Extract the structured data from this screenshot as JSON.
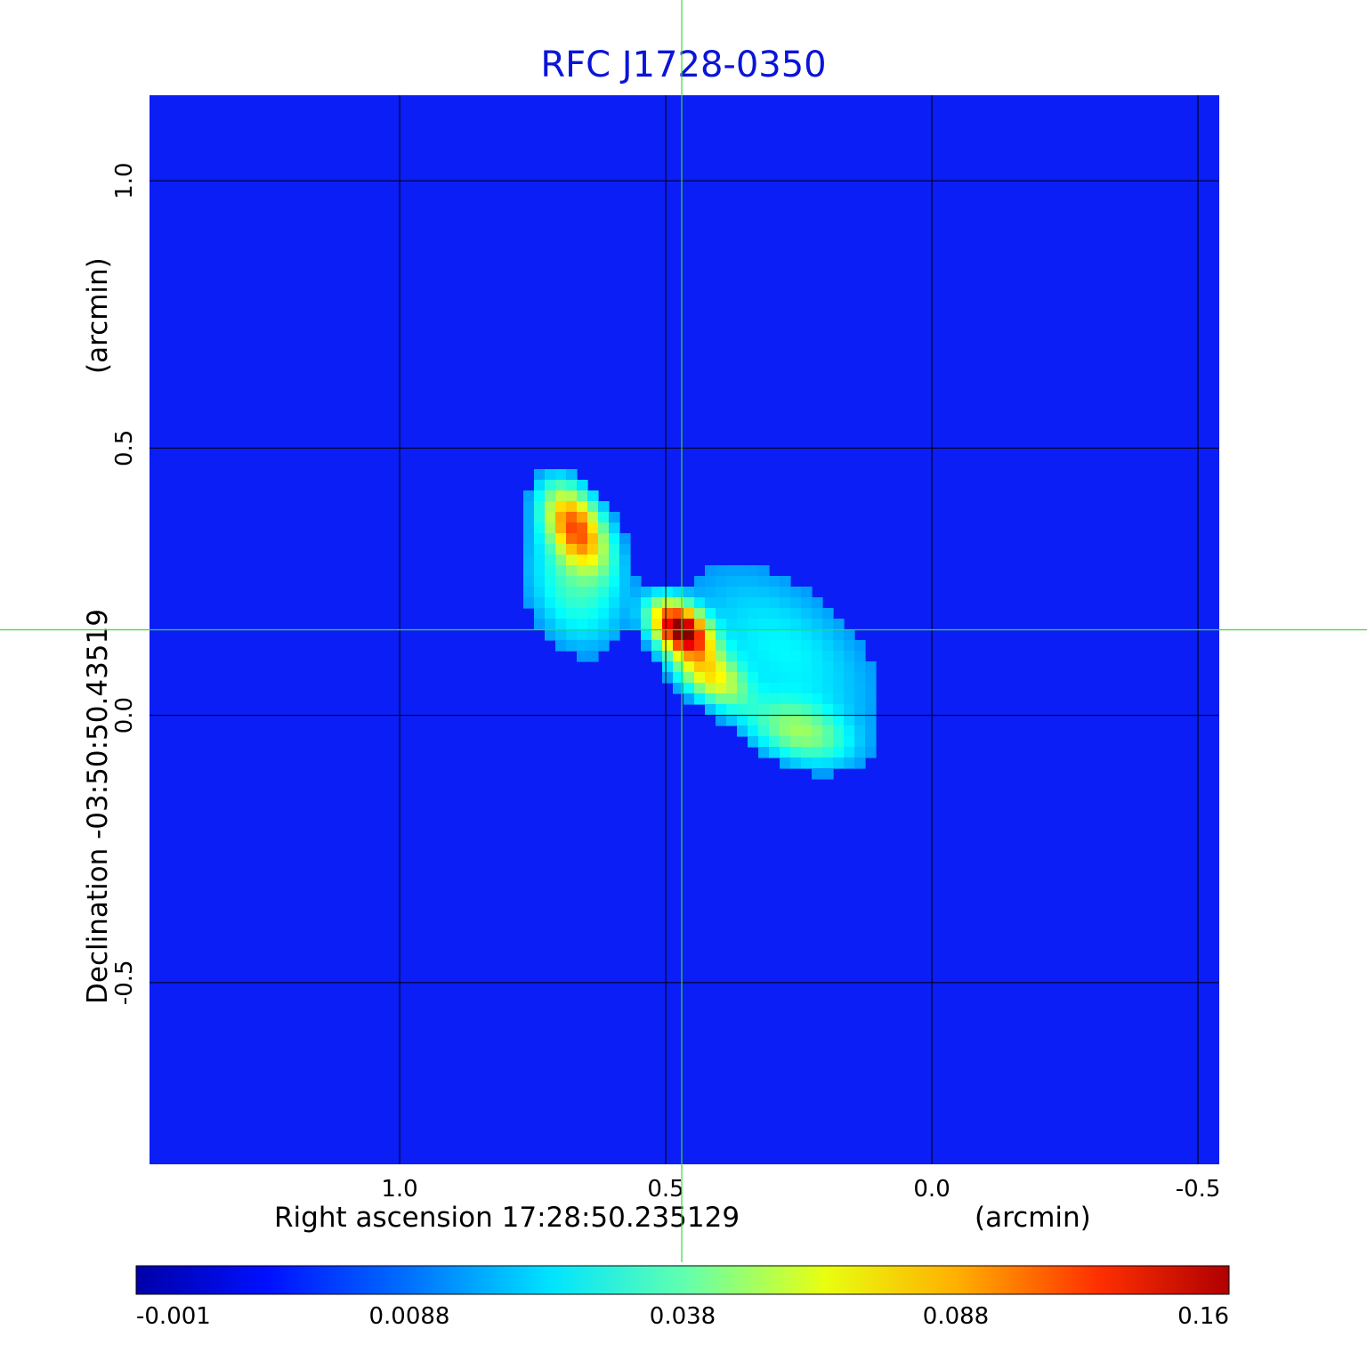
{
  "chart_data": {
    "type": "heatmap",
    "title": "RFC J1728-0350",
    "xlabel": "Right ascension  17:28:50.235129",
    "xunit": "(arcmin)",
    "ylabel": "Declination  -03:50:50.43519",
    "yunit": "(arcmin)",
    "x_ticks": [
      "1.0",
      "0.5",
      "0.0",
      "-0.5"
    ],
    "x_tick_values": [
      1.0,
      0.5,
      0.0,
      -0.5
    ],
    "y_ticks": [
      "1.0",
      "0.5",
      "0.0",
      "-0.5"
    ],
    "y_tick_values": [
      1.0,
      0.5,
      0.0,
      -0.5
    ],
    "xlim": [
      1.47,
      -0.54
    ],
    "ylim": [
      -0.84,
      1.16
    ],
    "grid": true,
    "crosshair": {
      "x": 0.47,
      "y": 0.16,
      "color": "#33dd33"
    },
    "colorbar": {
      "position": "bottom",
      "ticks": [
        "-0.001",
        "0.0088",
        "0.038",
        "0.088",
        "0.16"
      ],
      "tick_values": [
        -0.001,
        0.0088,
        0.038,
        0.088,
        0.16
      ],
      "colormap": "jet",
      "range": [
        -0.001,
        0.16
      ]
    },
    "components": [
      {
        "x": 0.67,
        "y": 0.35,
        "peak": 0.09
      },
      {
        "x": 0.47,
        "y": 0.16,
        "peak": 0.16
      },
      {
        "x": 0.42,
        "y": 0.08,
        "peak": 0.055
      },
      {
        "x": 0.25,
        "y": -0.03,
        "peak": 0.03
      }
    ],
    "extended_emission": [
      {
        "x": 0.67,
        "y": 0.25,
        "peak": 0.02
      },
      {
        "x": 0.28,
        "y": 0.12,
        "peak": 0.012
      }
    ]
  }
}
